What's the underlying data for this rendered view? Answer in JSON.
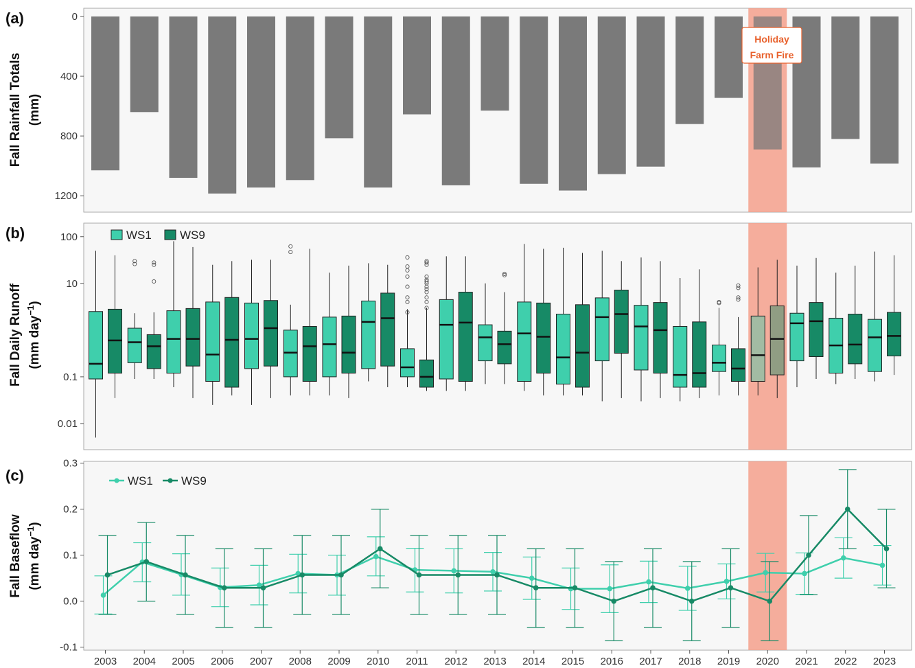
{
  "colors": {
    "ws1": "#3fcfac",
    "ws9": "#178a66",
    "rain_bar": "#7a7a7a",
    "fire_band": "#f4a08c",
    "fire_text": "#e8612c",
    "panel_bg": "#f7f7f7"
  },
  "years": [
    "2003",
    "2004",
    "2005",
    "2006",
    "2007",
    "2008",
    "2009",
    "2010",
    "2011",
    "2012",
    "2013",
    "2014",
    "2015",
    "2016",
    "2017",
    "2018",
    "2019",
    "2020",
    "2021",
    "2022",
    "2023"
  ],
  "fire_highlight": {
    "year": "2020",
    "label_line1": "Holiday",
    "label_line2": "Farm Fire"
  },
  "chart_data": [
    {
      "panel": "(a)",
      "type": "bar",
      "ylabel_line1": "Fall Rainfall Totals",
      "ylabel_line2": "(mm)",
      "y_reversed": true,
      "ylim": [
        0,
        1220
      ],
      "yticks": [
        0,
        400,
        800,
        1200
      ],
      "categories": [
        "2003",
        "2004",
        "2005",
        "2006",
        "2007",
        "2008",
        "2009",
        "2010",
        "2011",
        "2012",
        "2013",
        "2014",
        "2015",
        "2016",
        "2017",
        "2018",
        "2019",
        "2020",
        "2021",
        "2022",
        "2023"
      ],
      "values": [
        1030,
        640,
        1080,
        1185,
        1145,
        1095,
        815,
        1145,
        655,
        1130,
        630,
        1120,
        1165,
        1055,
        1005,
        720,
        545,
        890,
        1010,
        820,
        985
      ]
    },
    {
      "panel": "(b)",
      "type": "boxplot",
      "ylabel_line1": "Fall Daily Runoff",
      "ylabel_line2_prefix": "(mm day",
      "ylabel_line2_sup": "−1",
      "ylabel_line2_suffix": ")",
      "y_scale": "log",
      "ylim": [
        0.004,
        130
      ],
      "yticks": [
        0.01,
        0.1,
        10,
        100
      ],
      "ytick_labels": [
        "0.01",
        "0.1",
        "10",
        "100"
      ],
      "legend": [
        "WS1",
        "WS9"
      ],
      "series": [
        {
          "name": "WS1",
          "boxes": [
            {
              "min": 0.005,
              "q1": 0.09,
              "median": 0.19,
              "q3": 2.5,
              "max": 50
            },
            {
              "min": 0.09,
              "q1": 0.2,
              "median": 0.55,
              "q3": 1.1,
              "max": 2.3,
              "outliers": [
                30,
                26
              ]
            },
            {
              "min": 0.06,
              "q1": 0.12,
              "median": 0.65,
              "q3": 2.6,
              "max": 80
            },
            {
              "min": 0.025,
              "q1": 0.08,
              "median": 0.3,
              "q3": 4.0,
              "max": 25
            },
            {
              "min": 0.025,
              "q1": 0.15,
              "median": 0.65,
              "q3": 3.8,
              "max": 32
            },
            {
              "min": 0.04,
              "q1": 0.1,
              "median": 0.33,
              "q3": 1.0,
              "max": 3.5,
              "outliers": [
                62,
                47
              ]
            },
            {
              "min": 0.04,
              "q1": 0.1,
              "median": 0.5,
              "q3": 1.9,
              "max": 17
            },
            {
              "min": 0.08,
              "q1": 0.15,
              "median": 1.5,
              "q3": 4.2,
              "max": 27
            },
            {
              "min": 0.06,
              "q1": 0.1,
              "median": 0.16,
              "q3": 0.4,
              "max": 2.8,
              "outliers": [
                36,
                23,
                19,
                14,
                8.5,
                5.0,
                4.0,
                2.4
              ]
            },
            {
              "min": 0.05,
              "q1": 0.09,
              "median": 1.3,
              "q3": 4.5,
              "max": 38
            },
            {
              "min": 0.07,
              "q1": 0.22,
              "median": 0.7,
              "q3": 1.3,
              "max": 10
            },
            {
              "min": 0.05,
              "q1": 0.08,
              "median": 0.85,
              "q3": 4.0,
              "max": 70
            },
            {
              "min": 0.04,
              "q1": 0.07,
              "median": 0.26,
              "q3": 2.2,
              "max": 58
            },
            {
              "min": 0.03,
              "q1": 0.22,
              "median": 1.9,
              "q3": 4.9,
              "max": 50
            },
            {
              "min": 0.03,
              "q1": 0.14,
              "median": 1.2,
              "q3": 3.4,
              "max": 36
            },
            {
              "min": 0.03,
              "q1": 0.06,
              "median": 0.11,
              "q3": 1.2,
              "max": 13
            },
            {
              "min": 0.04,
              "q1": 0.13,
              "median": 0.2,
              "q3": 0.48,
              "max": 3.0,
              "outliers": [
                4.0,
                3.8
              ]
            },
            {
              "min": 0.04,
              "q1": 0.08,
              "median": 0.29,
              "q3": 2.0,
              "max": 22
            },
            {
              "min": 0.06,
              "q1": 0.22,
              "median": 1.4,
              "q3": 2.3,
              "max": 24
            },
            {
              "min": 0.07,
              "q1": 0.12,
              "median": 0.47,
              "q3": 1.8,
              "max": 17
            },
            {
              "min": 0.08,
              "q1": 0.13,
              "median": 0.7,
              "q3": 1.7,
              "max": 48
            }
          ]
        },
        {
          "name": "WS9",
          "boxes": [
            {
              "min": 0.035,
              "q1": 0.12,
              "median": 0.6,
              "q3": 2.8,
              "max": 40
            },
            {
              "min": 0.09,
              "q1": 0.15,
              "median": 0.45,
              "q3": 0.8,
              "max": 2.4,
              "outliers": [
                28,
                25,
                11
              ]
            },
            {
              "min": 0.035,
              "q1": 0.17,
              "median": 0.65,
              "q3": 2.9,
              "max": 60
            },
            {
              "min": 0.04,
              "q1": 0.06,
              "median": 0.62,
              "q3": 5.0,
              "max": 30
            },
            {
              "min": 0.035,
              "q1": 0.17,
              "median": 1.1,
              "q3": 4.3,
              "max": 32
            },
            {
              "min": 0.04,
              "q1": 0.08,
              "median": 0.45,
              "q3": 1.2,
              "max": 55
            },
            {
              "min": 0.035,
              "q1": 0.12,
              "median": 0.33,
              "q3": 2.0,
              "max": 24
            },
            {
              "min": 0.06,
              "q1": 0.17,
              "median": 1.8,
              "q3": 6.2,
              "max": 25
            },
            {
              "min": 0.05,
              "q1": 0.06,
              "median": 0.1,
              "q3": 0.23,
              "max": 3.0,
              "outliers": [
                30,
                28,
                25,
                14,
                12,
                11,
                10,
                8.5,
                7.5,
                6.5,
                5.0,
                4.0,
                3.0
              ]
            },
            {
              "min": 0.05,
              "q1": 0.08,
              "median": 1.45,
              "q3": 6.5,
              "max": 38
            },
            {
              "min": 0.07,
              "q1": 0.19,
              "median": 0.5,
              "q3": 0.95,
              "max": 6.5,
              "outliers": [
                16,
                15
              ]
            },
            {
              "min": 0.04,
              "q1": 0.12,
              "median": 0.72,
              "q3": 3.8,
              "max": 55
            },
            {
              "min": 0.04,
              "q1": 0.06,
              "median": 0.33,
              "q3": 3.5,
              "max": 45
            },
            {
              "min": 0.035,
              "q1": 0.32,
              "median": 2.2,
              "q3": 7.2,
              "max": 30
            },
            {
              "min": 0.035,
              "q1": 0.12,
              "median": 1.0,
              "q3": 3.9,
              "max": 30
            },
            {
              "min": 0.035,
              "q1": 0.06,
              "median": 0.12,
              "q3": 1.5,
              "max": 20
            },
            {
              "min": 0.04,
              "q1": 0.08,
              "median": 0.15,
              "q3": 0.4,
              "max": 1.9,
              "outliers": [
                9.0,
                8.0,
                5.0,
                4.5
              ]
            },
            {
              "min": 0.035,
              "q1": 0.11,
              "median": 0.65,
              "q3": 3.3,
              "max": 32
            },
            {
              "min": 0.09,
              "q1": 0.27,
              "median": 1.55,
              "q3": 3.9,
              "max": 35
            },
            {
              "min": 0.09,
              "q1": 0.19,
              "median": 0.49,
              "q3": 2.2,
              "max": 24
            },
            {
              "min": 0.11,
              "q1": 0.28,
              "median": 0.75,
              "q3": 2.4,
              "max": 40
            }
          ]
        }
      ]
    },
    {
      "panel": "(c)",
      "type": "line",
      "ylabel_line1": "Fall Baseflow",
      "ylabel_line2_prefix": "(mm day",
      "ylabel_line2_sup": "−1",
      "ylabel_line2_suffix": ")",
      "ylim": [
        -0.105,
        0.305
      ],
      "yticks": [
        -0.1,
        0.0,
        0.1,
        0.2,
        0.3
      ],
      "ytick_labels": [
        "-0.1",
        "0.0",
        "0.1",
        "0.2",
        "0.3"
      ],
      "x": [
        "2003",
        "2004",
        "2005",
        "2006",
        "2007",
        "2008",
        "2009",
        "2010",
        "2011",
        "2012",
        "2013",
        "2014",
        "2015",
        "2016",
        "2017",
        "2018",
        "2019",
        "2020",
        "2021",
        "2022",
        "2023"
      ],
      "legend": [
        "WS1",
        "WS9"
      ],
      "series": [
        {
          "name": "WS1",
          "values": [
            0.013,
            0.085,
            0.058,
            0.03,
            0.035,
            0.06,
            0.057,
            0.097,
            0.068,
            0.066,
            0.064,
            0.05,
            0.027,
            0.027,
            0.042,
            0.028,
            0.043,
            0.062,
            0.06,
            0.094,
            0.078
          ],
          "err_low": [
            -0.028,
            0.042,
            0.013,
            -0.012,
            -0.008,
            0.018,
            0.013,
            0.055,
            0.02,
            0.018,
            0.022,
            0.004,
            -0.018,
            -0.025,
            -0.003,
            -0.02,
            0.005,
            0.02,
            0.015,
            0.05,
            0.035
          ],
          "err_high": [
            0.055,
            0.127,
            0.103,
            0.072,
            0.078,
            0.102,
            0.1,
            0.14,
            0.115,
            0.114,
            0.106,
            0.096,
            0.072,
            0.079,
            0.087,
            0.076,
            0.081,
            0.104,
            0.105,
            0.138,
            0.121
          ]
        },
        {
          "name": "WS9",
          "values": [
            0.057,
            0.086,
            0.057,
            0.029,
            0.029,
            0.057,
            0.057,
            0.114,
            0.057,
            0.057,
            0.057,
            0.029,
            0.029,
            0.0,
            0.029,
            0.0,
            0.029,
            0.0,
            0.1,
            0.2,
            0.114
          ],
          "err_low": [
            -0.029,
            0.0,
            -0.029,
            -0.057,
            -0.057,
            -0.029,
            -0.029,
            0.029,
            -0.029,
            -0.029,
            -0.029,
            -0.057,
            -0.057,
            -0.086,
            -0.057,
            -0.086,
            -0.057,
            -0.086,
            0.014,
            0.114,
            0.029
          ],
          "err_high": [
            0.143,
            0.171,
            0.143,
            0.114,
            0.114,
            0.143,
            0.143,
            0.2,
            0.143,
            0.143,
            0.143,
            0.114,
            0.114,
            0.086,
            0.114,
            0.086,
            0.114,
            0.086,
            0.186,
            0.286,
            0.2
          ]
        }
      ]
    }
  ]
}
